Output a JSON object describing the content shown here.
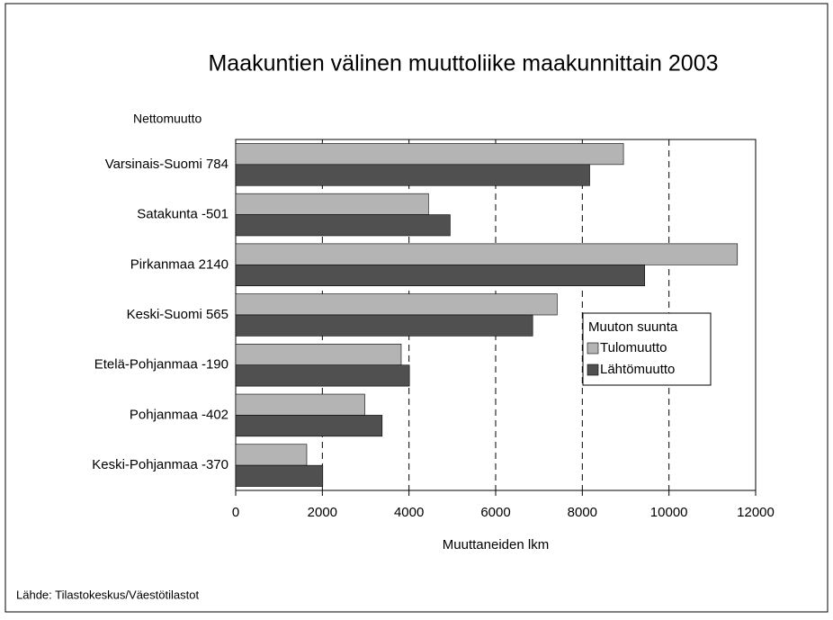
{
  "chart_data": {
    "type": "barh",
    "title": "Maakuntien välinen muuttoliike maakunnittain 2003",
    "category_axis_label": "Nettomuutto",
    "x_axis_label": "Muuttaneiden lkm",
    "source": "Lähde: Tilastokeskus/Väestötilastot",
    "legend_title": "Muuton suunta",
    "categories": [
      "Varsinais-Suomi 784",
      "Satakunta -501",
      "Pirkanmaa 2140",
      "Keski-Suomi 565",
      "Etelä-Pohjanmaa -190",
      "Pohjanmaa -402",
      "Keski-Pohjanmaa -370"
    ],
    "series": [
      {
        "name": "Tulomuutto",
        "color": "#b4b4b4",
        "values": [
          8950,
          4450,
          11580,
          7420,
          3820,
          2980,
          1640
        ]
      },
      {
        "name": "Lähtömuutto",
        "color": "#505050",
        "values": [
          8170,
          4950,
          9440,
          6855,
          4010,
          3380,
          2010
        ]
      }
    ],
    "xlim": [
      0,
      12000
    ],
    "xticks": [
      0,
      2000,
      4000,
      6000,
      8000,
      10000,
      12000
    ],
    "grid": true,
    "legend_position": "right"
  }
}
